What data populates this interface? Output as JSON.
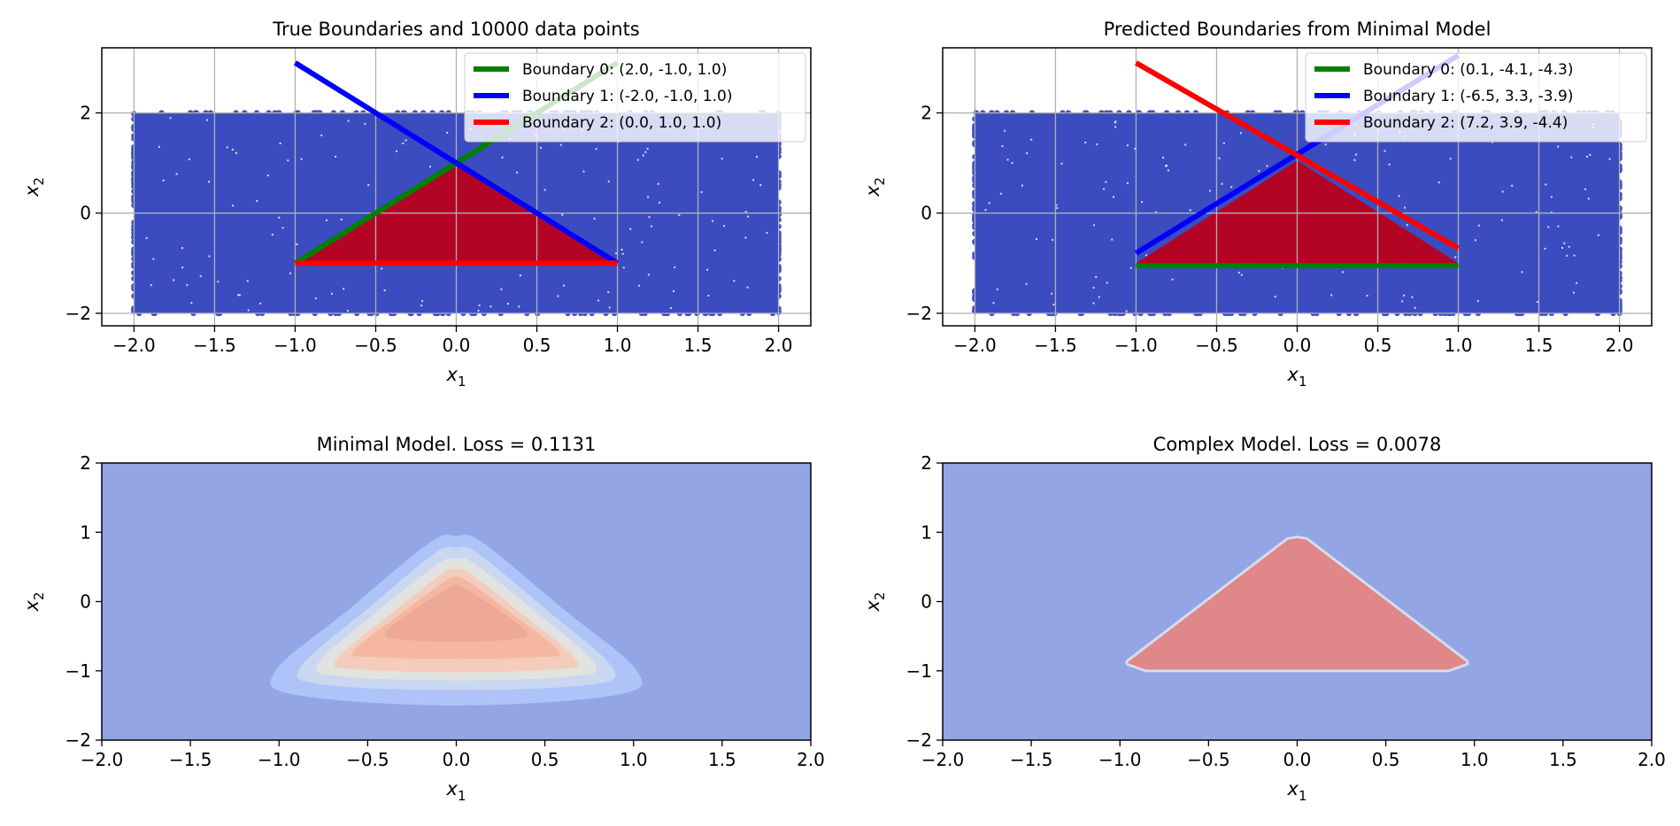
{
  "colors": {
    "point_blue": "#3b4cc0",
    "point_red": "#b40426",
    "grid": "#b0b0b0",
    "boundary_0": "#008000",
    "boundary_1": "#0000ff",
    "boundary_2": "#ff0000",
    "contour_levels": [
      "#93a5e4",
      "#aec3f7",
      "#c9d7f0",
      "#e2e2e0",
      "#f3ccbb",
      "#f5b7a0",
      "#eea897"
    ],
    "complex_in": "#e0878a",
    "complex_out": "#93a5e4"
  },
  "chart_data": [
    {
      "type": "scatter",
      "title": "True Boundaries and 10000 data points",
      "xlabel": "x",
      "xlabel_sub": "1",
      "ylabel": "x",
      "ylabel_sub": "2",
      "xlim": [
        -2.2,
        2.2
      ],
      "ylim": [
        -2.25,
        3.3
      ],
      "xticks": [
        "−2.0",
        "−1.5",
        "−1.0",
        "−0.5",
        "0.0",
        "0.5",
        "1.0",
        "1.5",
        "2.0"
      ],
      "xtick_values": [
        -2.0,
        -1.5,
        -1.0,
        -0.5,
        0.0,
        0.5,
        1.0,
        1.5,
        2.0
      ],
      "yticks": [
        "−2",
        "0",
        "2"
      ],
      "ytick_values": [
        -2,
        0,
        2
      ],
      "grid": true,
      "legend_position": "top-right",
      "data_region": {
        "x": [
          -2,
          2
        ],
        "y": [
          -2,
          2
        ]
      },
      "inside_region": [
        [
          -1,
          -1
        ],
        [
          0,
          1
        ],
        [
          1,
          -1
        ]
      ],
      "series": [
        {
          "name": "Boundary 0: (2.0, -1.0, 1.0)",
          "x": [
            -1,
            1
          ],
          "y": [
            -1,
            3
          ]
        },
        {
          "name": "Boundary 1: (-2.0, -1.0, 1.0)",
          "x": [
            -1,
            1
          ],
          "y": [
            3,
            -1
          ]
        },
        {
          "name": "Boundary 2: (0.0, 1.0, 1.0)",
          "x": [
            -1,
            1
          ],
          "y": [
            -1,
            -1
          ]
        }
      ]
    },
    {
      "type": "scatter",
      "title": "Predicted Boundaries from Minimal Model",
      "xlabel": "x",
      "xlabel_sub": "1",
      "ylabel": "x",
      "ylabel_sub": "2",
      "xlim": [
        -2.2,
        2.2
      ],
      "ylim": [
        -2.25,
        3.3
      ],
      "xticks": [
        "−2.0",
        "−1.5",
        "−1.0",
        "−0.5",
        "0.0",
        "0.5",
        "1.0",
        "1.5",
        "2.0"
      ],
      "xtick_values": [
        -2.0,
        -1.5,
        -1.0,
        -0.5,
        0.0,
        0.5,
        1.0,
        1.5,
        2.0
      ],
      "yticks": [
        "−2",
        "0",
        "2"
      ],
      "ytick_values": [
        -2,
        0,
        2
      ],
      "grid": true,
      "legend_position": "top-right",
      "data_region": {
        "x": [
          -2,
          2
        ],
        "y": [
          -2,
          2
        ]
      },
      "inside_region": [
        [
          -1,
          -1
        ],
        [
          0,
          1.05
        ],
        [
          1,
          -1
        ]
      ],
      "series": [
        {
          "name": "Boundary 0: (0.1, -4.1, -4.3)",
          "x": [
            -1,
            1
          ],
          "y": [
            -1.05,
            -1.05
          ]
        },
        {
          "name": "Boundary 1: (-6.5, 3.3, -3.9)",
          "x": [
            -1,
            1
          ],
          "y": [
            -0.8,
            3.15
          ]
        },
        {
          "name": "Boundary 2: (7.2, 3.9, -4.4)",
          "x": [
            -1,
            1
          ],
          "y": [
            3.0,
            -0.7
          ]
        }
      ]
    },
    {
      "type": "heatmap",
      "title": "Minimal Model. Loss = 0.1131",
      "xlabel": "x",
      "xlabel_sub": "1",
      "ylabel": "x",
      "ylabel_sub": "2",
      "xlim": [
        -2,
        2
      ],
      "ylim": [
        -2,
        2
      ],
      "xticks": [
        "−2.0",
        "−1.5",
        "−1.0",
        "−0.5",
        "0.0",
        "0.5",
        "1.0",
        "1.5",
        "2.0"
      ],
      "xtick_values": [
        -2.0,
        -1.5,
        -1.0,
        -0.5,
        0.0,
        0.5,
        1.0,
        1.5,
        2.0
      ],
      "yticks": [
        "−2",
        "−1",
        "0",
        "1",
        "2"
      ],
      "ytick_values": [
        -2,
        -1,
        0,
        1,
        2
      ],
      "grid": false,
      "contours": [
        {
          "level": 1,
          "cx": 0.0,
          "cy": -0.45,
          "rx": 1.02,
          "ry": 0.72,
          "points": [
            [
              -1.02,
              -1.0
            ],
            [
              -0.9,
              -1.35
            ],
            [
              0,
              -1.5
            ],
            [
              0.9,
              -1.35
            ],
            [
              1.02,
              -1.0
            ],
            [
              0.6,
              -0.1
            ],
            [
              0.15,
              0.85
            ],
            [
              0,
              0.95
            ],
            [
              -0.15,
              0.85
            ],
            [
              -0.6,
              -0.1
            ]
          ]
        },
        {
          "level": 2,
          "points": [
            [
              -0.88,
              -0.95
            ],
            [
              -0.75,
              -1.2
            ],
            [
              0,
              -1.28
            ],
            [
              0.75,
              -1.2
            ],
            [
              0.88,
              -0.95
            ],
            [
              0.5,
              -0.1
            ],
            [
              0.12,
              0.7
            ],
            [
              0,
              0.78
            ],
            [
              -0.12,
              0.7
            ],
            [
              -0.5,
              -0.1
            ]
          ]
        },
        {
          "level": 3,
          "points": [
            [
              -0.78,
              -0.9
            ],
            [
              -0.65,
              -1.08
            ],
            [
              0,
              -1.14
            ],
            [
              0.65,
              -1.08
            ],
            [
              0.78,
              -0.9
            ],
            [
              0.45,
              -0.15
            ],
            [
              0.1,
              0.55
            ],
            [
              0,
              0.62
            ],
            [
              -0.1,
              0.55
            ],
            [
              -0.45,
              -0.15
            ]
          ]
        },
        {
          "level": 4,
          "points": [
            [
              -0.68,
              -0.85
            ],
            [
              -0.55,
              -0.98
            ],
            [
              0,
              -1.02
            ],
            [
              0.55,
              -0.98
            ],
            [
              0.68,
              -0.85
            ],
            [
              0.38,
              -0.2
            ],
            [
              0.08,
              0.4
            ],
            [
              0,
              0.47
            ],
            [
              -0.08,
              0.4
            ],
            [
              -0.38,
              -0.2
            ]
          ]
        },
        {
          "level": 5,
          "points": [
            [
              -0.58,
              -0.72
            ],
            [
              -0.45,
              -0.8
            ],
            [
              0,
              -0.83
            ],
            [
              0.45,
              -0.8
            ],
            [
              0.58,
              -0.72
            ],
            [
              0.3,
              -0.15
            ],
            [
              0.06,
              0.3
            ],
            [
              0,
              0.35
            ],
            [
              -0.06,
              0.3
            ],
            [
              -0.3,
              -0.15
            ]
          ]
        },
        {
          "level": 6,
          "points": [
            [
              -0.4,
              -0.45
            ],
            [
              -0.3,
              -0.55
            ],
            [
              0,
              -0.58
            ],
            [
              0.3,
              -0.55
            ],
            [
              0.4,
              -0.45
            ],
            [
              0.2,
              -0.05
            ],
            [
              0.04,
              0.2
            ],
            [
              0,
              0.25
            ],
            [
              -0.04,
              0.2
            ],
            [
              -0.2,
              -0.05
            ]
          ]
        }
      ]
    },
    {
      "type": "heatmap",
      "title": "Complex Model. Loss = 0.0078",
      "xlabel": "x",
      "xlabel_sub": "1",
      "ylabel": "x",
      "ylabel_sub": "2",
      "xlim": [
        -2,
        2
      ],
      "ylim": [
        -2,
        2
      ],
      "xticks": [
        "−2.0",
        "−1.5",
        "−1.0",
        "−0.5",
        "0.0",
        "0.5",
        "1.0",
        "1.5",
        "2.0"
      ],
      "xtick_values": [
        -2.0,
        -1.5,
        -1.0,
        -0.5,
        0.0,
        0.5,
        1.0,
        1.5,
        2.0
      ],
      "yticks": [
        "−2",
        "−1",
        "0",
        "1",
        "2"
      ],
      "ytick_values": [
        -2,
        -1,
        0,
        1,
        2
      ],
      "grid": false,
      "region": [
        [
          -0.95,
          -0.88
        ],
        [
          -0.85,
          -0.97
        ],
        [
          0.85,
          -0.97
        ],
        [
          0.95,
          -0.88
        ],
        [
          0.05,
          0.88
        ],
        [
          0,
          0.9
        ],
        [
          -0.05,
          0.88
        ]
      ]
    }
  ]
}
